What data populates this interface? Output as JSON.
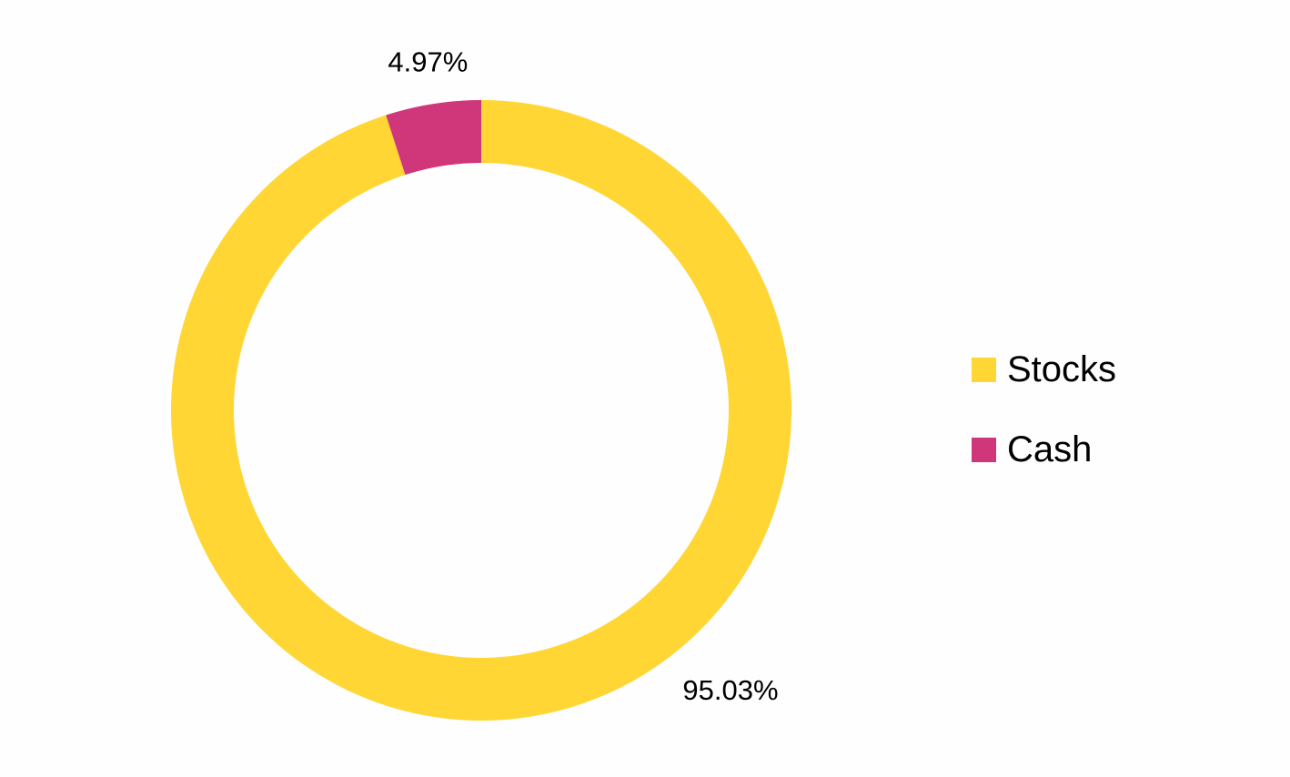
{
  "chart_data": {
    "type": "pie",
    "variant": "donut",
    "title": "",
    "slices": [
      {
        "label": "Stocks",
        "value": 95.03,
        "display": "95.03%",
        "color": "#FFD633"
      },
      {
        "label": "Cash",
        "value": 4.97,
        "display": "4.97%",
        "color": "#D0367A"
      }
    ],
    "legend_position": "right"
  },
  "legend": {
    "items": [
      {
        "label": "Stocks",
        "color": "#FFD633"
      },
      {
        "label": "Cash",
        "color": "#D0367A"
      }
    ]
  }
}
